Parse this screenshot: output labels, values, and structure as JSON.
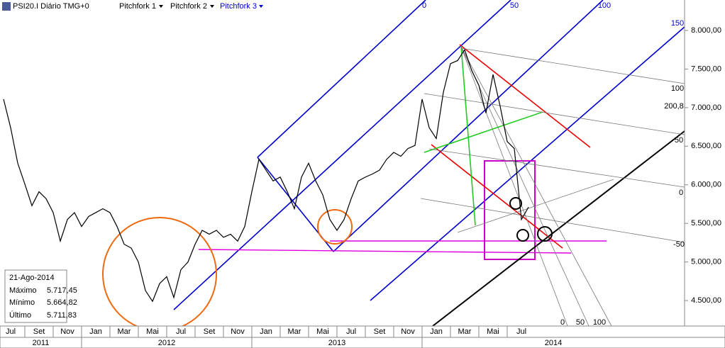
{
  "header": {
    "symbol": "PSI20.I Diário TMG+0",
    "menus": [
      "Pitchfork 1",
      "Pitchfork 2",
      "Pitchfork 3"
    ]
  },
  "info_box": {
    "date": "21-Ago-2014",
    "rows": [
      [
        "Máximo",
        "5.717,45"
      ],
      [
        "Mínimo",
        "5.664,82"
      ],
      [
        "Último",
        "5.711,83"
      ]
    ]
  },
  "chart_data": {
    "type": "line",
    "color": "#000000",
    "grid": false,
    "categories": [
      null,
      "Jul",
      null,
      null,
      null,
      "Set",
      null,
      null,
      null,
      "Nov",
      null,
      null,
      null,
      "Jan",
      null,
      null,
      null,
      "Mar",
      null,
      null,
      null,
      "Mai",
      null,
      null,
      null,
      "Jul",
      null,
      null,
      null,
      "Set",
      null,
      null,
      null,
      "Nov",
      null,
      null,
      null,
      "Jan",
      null,
      null,
      null,
      "Mar",
      null,
      null,
      null,
      "Mai",
      null,
      null,
      null,
      "Jul",
      null,
      null,
      null,
      "Set",
      null,
      null,
      null,
      "Nov",
      null,
      null,
      null,
      "Jan",
      null,
      null,
      null,
      "Mar",
      null,
      null,
      null,
      "Mai",
      null,
      null,
      null,
      "Jul",
      null
    ],
    "values": [
      7110,
      6740,
      6280,
      6010,
      5730,
      5910,
      5820,
      5640,
      5270,
      5550,
      5640,
      5460,
      5590,
      5640,
      5690,
      5640,
      5460,
      5230,
      5180,
      5000,
      4630,
      4490,
      4720,
      4810,
      4540,
      4900,
      5000,
      5230,
      5410,
      5360,
      5410,
      5320,
      5360,
      5270,
      5460,
      5910,
      6330,
      6190,
      6050,
      6100,
      5910,
      5690,
      6100,
      6280,
      6050,
      5870,
      5550,
      5410,
      5550,
      5820,
      6050,
      6100,
      6140,
      6190,
      6330,
      6420,
      6370,
      6470,
      6510,
      7110,
      6740,
      6600,
      7200,
      7570,
      7610,
      7750,
      7480,
      7290,
      6930,
      7430,
      7020,
      6560,
      6470,
      5550,
      5710
    ],
    "ylim": [
      4170,
      8395
    ],
    "yticks": [
      {
        "value": 4500,
        "label": "4.500,00"
      },
      {
        "value": 5000,
        "label": "5.000,00"
      },
      {
        "value": 5500,
        "label": "5.500,00"
      },
      {
        "value": 6000,
        "label": "6.000,00"
      },
      {
        "value": 6500,
        "label": "6.500,00"
      },
      {
        "value": 7000,
        "label": "7.000,00"
      },
      {
        "value": 7500,
        "label": "7.500,00"
      },
      {
        "value": 8000,
        "label": "8.000,00"
      }
    ],
    "year_labels": [
      "2011",
      "2012",
      "2013",
      "2014"
    ],
    "annotation_labels": [
      "0",
      "50",
      "100",
      "150",
      "100",
      "200,8",
      "50",
      "0",
      "-50",
      "0",
      "50",
      "100"
    ]
  }
}
